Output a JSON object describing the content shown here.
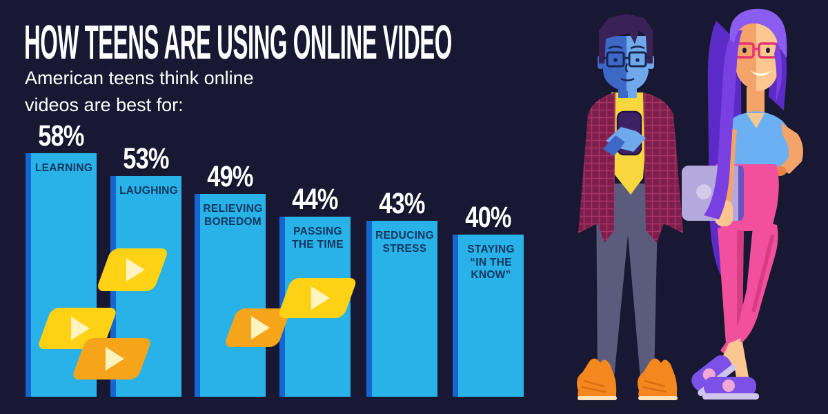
{
  "header": {
    "title": "HOW TEENS ARE USING ONLINE VIDEO",
    "subtitle_line1": "American teens think online",
    "subtitle_line2": "videos are best for:"
  },
  "chart_data": {
    "type": "bar",
    "title": "How Teens Are Using Online Video",
    "subtitle": "American teens think online videos are best for:",
    "categories": [
      "Learning",
      "Laughing",
      "Relieving Boredom",
      "Passing the Time",
      "Reducing Stress",
      "Staying \"In the Know\""
    ],
    "values": [
      58,
      53,
      49,
      44,
      43,
      40
    ],
    "display_labels": [
      "LEARNING",
      "LAUGHING",
      "RELIEVING\nBOREDOM",
      "PASSING\nTHE TIME",
      "REDUCING\nSTRESS",
      "STAYING\n“IN THE\nKNOW”"
    ],
    "value_suffix": "%",
    "ylim": [
      0,
      60
    ],
    "grid": false,
    "legend": "none",
    "orientation": "vertical",
    "bar_color": "#29b2e8",
    "bar_edge_color": "#1565d2",
    "label_color": "#12355e",
    "value_label_color": "#ffffff"
  },
  "icons": {
    "play_icons": [
      {
        "name": "play-icon",
        "variant": "yellow"
      },
      {
        "name": "play-icon",
        "variant": "yellow"
      },
      {
        "name": "play-icon",
        "variant": "orange"
      },
      {
        "name": "play-icon",
        "variant": "orange"
      },
      {
        "name": "play-icon",
        "variant": "yellow"
      }
    ],
    "play_yellow": "#ffd215",
    "play_orange": "#f6a51b",
    "play_triangle": "#fff3c0"
  },
  "illustration": {
    "alt": "Two teens: a boy in a plaid shirt looking at his smartphone and a girl with purple hair and pink glasses holding a laptop"
  },
  "colors": {
    "background": "#181833",
    "title_text": "#ffffff",
    "boy_skin_dark": "#3e68c6",
    "boy_skin_light": "#6fa9ec",
    "boy_shirt": "#f8d73e",
    "boy_jacket": "#7e1e4a",
    "boy_pants": "#5b5b7d",
    "boy_shoes": "#f5871f",
    "girl_hair": "#7a3fe0",
    "girl_skin": "#f4a469",
    "girl_glasses": "#e63571",
    "girl_top": "#6cb0f4",
    "girl_pants": "#f2509e",
    "girl_laptop": "#b5a8dd",
    "girl_shoes": "#7b51e8"
  }
}
